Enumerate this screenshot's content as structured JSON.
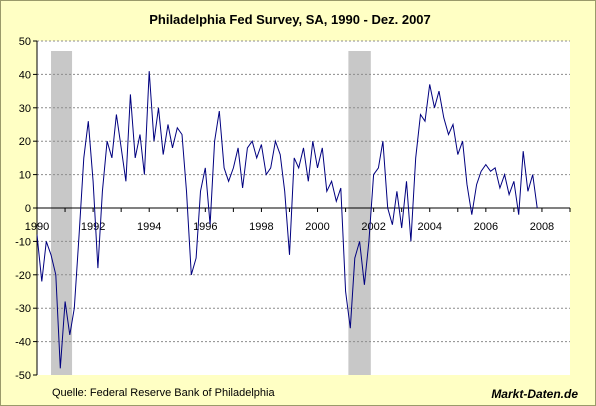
{
  "chart_data": {
    "type": "line",
    "title": "Philadelphia Fed Survey, SA, 1990 - Dez. 2007",
    "xlabel": "",
    "ylabel": "",
    "xlim": [
      1990,
      2009
    ],
    "ylim": [
      -50,
      50
    ],
    "y_ticks": [
      50,
      40,
      30,
      20,
      10,
      0,
      -10,
      -20,
      -30,
      -40,
      -50
    ],
    "x_ticks": [
      "1990",
      "1992",
      "1994",
      "1996",
      "1998",
      "2000",
      "2002",
      "2004",
      "2006",
      "2008"
    ],
    "grid": "horizontal dashed",
    "line_color": "#00007f",
    "recession_color": "#c8c8c8",
    "recessions": [
      [
        1990.5,
        1991.25
      ],
      [
        2001.1,
        2001.9
      ]
    ],
    "series": [
      {
        "x": [
          1990.0,
          1990.17,
          1990.33,
          1990.5,
          1990.67,
          1990.83,
          1991.0,
          1991.17,
          1991.33,
          1991.5,
          1991.67,
          1991.83,
          1992.0,
          1992.17,
          1992.33,
          1992.5,
          1992.67,
          1992.83,
          1993.0,
          1993.17,
          1993.33,
          1993.5,
          1993.67,
          1993.83,
          1994.0,
          1994.17,
          1994.33,
          1994.5,
          1994.67,
          1994.83,
          1995.0,
          1995.17,
          1995.33,
          1995.5,
          1995.67,
          1995.83,
          1996.0,
          1996.17,
          1996.33,
          1996.5,
          1996.67,
          1996.83,
          1997.0,
          1997.17,
          1997.33,
          1997.5,
          1997.67,
          1997.83,
          1998.0,
          1998.17,
          1998.33,
          1998.5,
          1998.67,
          1998.83,
          1999.0,
          1999.17,
          1999.33,
          1999.5,
          1999.67,
          1999.83,
          2000.0,
          2000.17,
          2000.33,
          2000.5,
          2000.67,
          2000.83,
          2001.0,
          2001.17,
          2001.33,
          2001.5,
          2001.67,
          2001.83,
          2002.0,
          2002.17,
          2002.33,
          2002.5,
          2002.67,
          2002.83,
          2003.0,
          2003.17,
          2003.33,
          2003.5,
          2003.67,
          2003.83,
          2004.0,
          2004.17,
          2004.33,
          2004.5,
          2004.67,
          2004.83,
          2005.0,
          2005.17,
          2005.33,
          2005.5,
          2005.67,
          2005.83,
          2006.0,
          2006.17,
          2006.33,
          2006.5,
          2006.67,
          2006.83,
          2007.0,
          2007.17,
          2007.33,
          2007.5,
          2007.67,
          2007.83
        ],
        "values": [
          -8,
          -22,
          -10,
          -14,
          -20,
          -48,
          -28,
          -38,
          -30,
          -8,
          15,
          26,
          8,
          -18,
          5,
          20,
          15,
          28,
          18,
          8,
          34,
          15,
          22,
          10,
          41,
          20,
          30,
          16,
          25,
          18,
          24,
          22,
          5,
          -20,
          -15,
          5,
          12,
          -5,
          20,
          29,
          12,
          8,
          12,
          18,
          6,
          18,
          20,
          15,
          19,
          10,
          12,
          20,
          16,
          5,
          -14,
          15,
          12,
          18,
          8,
          20,
          12,
          18,
          5,
          8,
          2,
          6,
          -25,
          -36,
          -15,
          -10,
          -23,
          -10,
          10,
          12,
          20,
          0,
          -5,
          5,
          -6,
          8,
          -10,
          15,
          28,
          26,
          37,
          30,
          35,
          27,
          22,
          25,
          16,
          20,
          7,
          -2,
          7,
          11,
          13,
          11,
          12,
          6,
          10,
          4,
          8,
          -2,
          17,
          5,
          10,
          0
        ]
      }
    ]
  },
  "source": "Quelle: Federal Reserve Bank of Philadelphia",
  "brand": "Markt-Daten.de"
}
